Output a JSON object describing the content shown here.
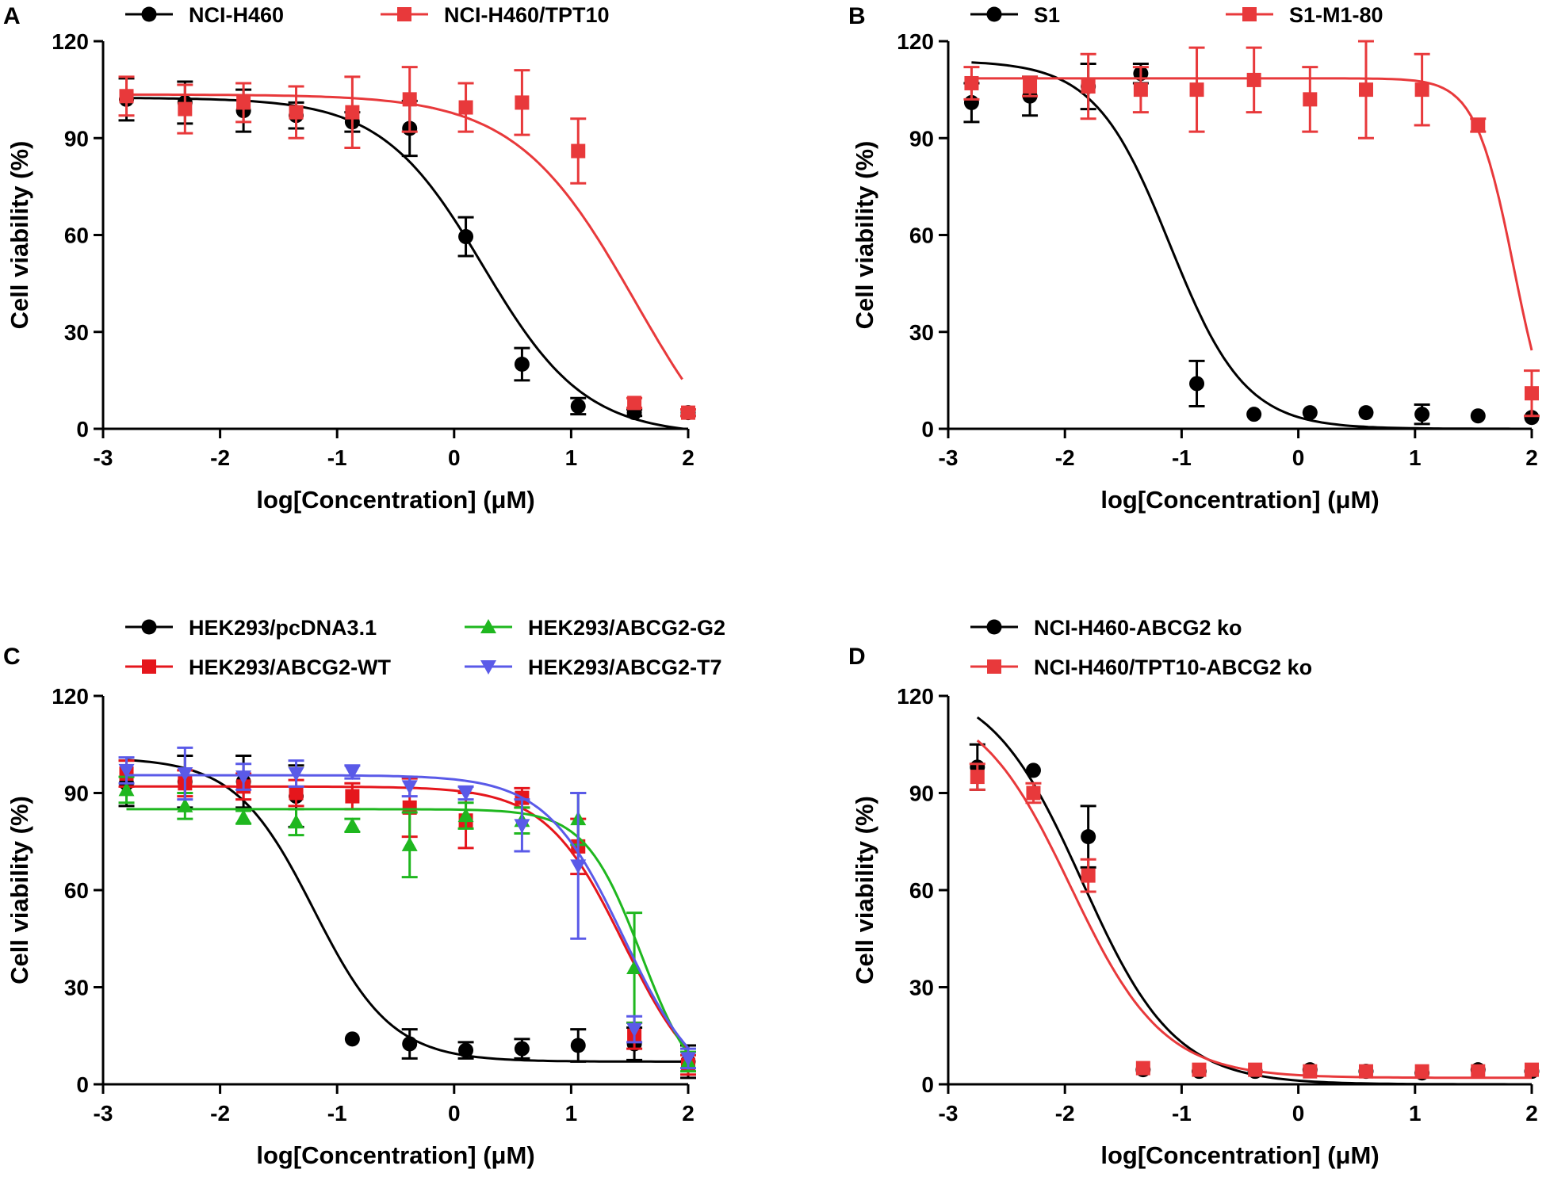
{
  "colors": {
    "black": "#000000",
    "red": "#E8393B",
    "red_dark": "#E5161C",
    "green": "#1FB71F",
    "blue": "#5A5AE8",
    "axis": "#000000"
  },
  "chart_data": [
    {
      "type": "line",
      "panel": "A",
      "xlabel": "log[Concentration] (μM)",
      "ylabel": "Cell viability (%)",
      "xlim": [
        -3,
        2
      ],
      "ylim": [
        0,
        120
      ],
      "xticks": [
        -3,
        -2,
        -1,
        0,
        1,
        2
      ],
      "xtick_labels": [
        "-3",
        "-2",
        "-1",
        "0",
        "1",
        "2"
      ],
      "yticks": [
        0,
        30,
        60,
        90,
        120
      ],
      "ytick_labels": [
        "0",
        "30",
        "60",
        "90",
        "120"
      ],
      "legend_layout": "top-row",
      "series": [
        {
          "name": "NCI-H460",
          "color": "black",
          "marker": "circle",
          "fit": {
            "top": 102.5,
            "bottom": -2,
            "ec50": 0.25,
            "hill": 1.0,
            "from": -2.8,
            "to": 2
          },
          "points": [
            {
              "x": -2.8,
              "y": 102,
              "err": 6.5
            },
            {
              "x": -2.3,
              "y": 101,
              "err": 6.5
            },
            {
              "x": -1.8,
              "y": 98.5,
              "err": 6.5
            },
            {
              "x": -1.35,
              "y": 97,
              "err": 4
            },
            {
              "x": -0.87,
              "y": 95,
              "err": 3
            },
            {
              "x": -0.38,
              "y": 93,
              "err": 8.5
            },
            {
              "x": 0.1,
              "y": 59.5,
              "err": 6
            },
            {
              "x": 0.58,
              "y": 20,
              "err": 5
            },
            {
              "x": 1.06,
              "y": 7,
              "err": 2.5
            },
            {
              "x": 1.54,
              "y": 5,
              "err": 1
            },
            {
              "x": 2.0,
              "y": 5,
              "err": 1
            }
          ]
        },
        {
          "name": "NCI-H460/TPT10",
          "color": "red",
          "marker": "square",
          "fit": {
            "top": 103.5,
            "bottom": -25,
            "ec50": 1.55,
            "hill": 0.85,
            "from": -2.8,
            "to": 1.95
          },
          "points": [
            {
              "x": -2.8,
              "y": 103,
              "err": 6
            },
            {
              "x": -2.3,
              "y": 99,
              "err": 7.5
            },
            {
              "x": -1.8,
              "y": 101,
              "err": 6
            },
            {
              "x": -1.35,
              "y": 98,
              "err": 8
            },
            {
              "x": -0.87,
              "y": 98,
              "err": 11
            },
            {
              "x": -0.38,
              "y": 102,
              "err": 10
            },
            {
              "x": 0.1,
              "y": 99.5,
              "err": 7.5
            },
            {
              "x": 0.58,
              "y": 101,
              "err": 10
            },
            {
              "x": 1.06,
              "y": 86,
              "err": 10
            },
            {
              "x": 1.54,
              "y": 8,
              "err": 1.5
            },
            {
              "x": 2.0,
              "y": 5,
              "err": 1
            }
          ]
        }
      ],
      "legend": [
        "NCI-H460",
        "NCI-H460/TPT10"
      ]
    },
    {
      "type": "line",
      "panel": "B",
      "xlabel": "log[Concentration] (μM)",
      "ylabel": "Cell viability (%)",
      "xlim": [
        -3,
        2
      ],
      "ylim": [
        0,
        120
      ],
      "xticks": [
        -3,
        -2,
        -1,
        0,
        1,
        2
      ],
      "xtick_labels": [
        "-3",
        "-2",
        "-1",
        "0",
        "1",
        "2"
      ],
      "yticks": [
        0,
        30,
        60,
        90,
        120
      ],
      "ytick_labels": [
        "0",
        "30",
        "60",
        "90",
        "120"
      ],
      "legend_layout": "top-row",
      "series": [
        {
          "name": "S1",
          "color": "black",
          "marker": "circle",
          "fit": {
            "top": 114,
            "bottom": 0,
            "ec50": -1.1,
            "hill": 1.35,
            "from": -2.8,
            "to": 2
          },
          "points": [
            {
              "x": -2.8,
              "y": 101,
              "err": 6
            },
            {
              "x": -2.3,
              "y": 103,
              "err": 6
            },
            {
              "x": -1.8,
              "y": 106,
              "err": 7
            },
            {
              "x": -1.35,
              "y": 110,
              "err": 3
            },
            {
              "x": -0.87,
              "y": 14,
              "err": 7
            },
            {
              "x": -0.38,
              "y": 4.5,
              "err": 0
            },
            {
              "x": 0.1,
              "y": 5,
              "err": 0
            },
            {
              "x": 0.58,
              "y": 5,
              "err": 0
            },
            {
              "x": 1.06,
              "y": 4.5,
              "err": 3
            },
            {
              "x": 1.54,
              "y": 4,
              "err": 0
            },
            {
              "x": 2.0,
              "y": 3.5,
              "err": 0
            }
          ]
        },
        {
          "name": "S1-M1-80",
          "color": "red",
          "marker": "square",
          "fit": {
            "top": 108.5,
            "bottom": -10,
            "ec50": 1.85,
            "hill": 2.6,
            "from": -2.8,
            "to": 2.0
          },
          "points": [
            {
              "x": -2.8,
              "y": 107,
              "err": 5
            },
            {
              "x": -2.3,
              "y": 106,
              "err": 3
            },
            {
              "x": -1.8,
              "y": 106,
              "err": 10
            },
            {
              "x": -1.35,
              "y": 105,
              "err": 7
            },
            {
              "x": -0.87,
              "y": 105,
              "err": 13
            },
            {
              "x": -0.38,
              "y": 108,
              "err": 10
            },
            {
              "x": 0.1,
              "y": 102,
              "err": 10
            },
            {
              "x": 0.58,
              "y": 105,
              "err": 15
            },
            {
              "x": 1.06,
              "y": 105,
              "err": 11
            },
            {
              "x": 1.54,
              "y": 94,
              "err": 2
            },
            {
              "x": 2.0,
              "y": 11,
              "err": 7
            }
          ]
        }
      ],
      "legend": [
        "S1",
        "S1-M1-80"
      ]
    },
    {
      "type": "line",
      "panel": "C",
      "xlabel": "log[Concentration] (μM)",
      "ylabel": "Cell viability (%)",
      "xlim": [
        -3,
        2
      ],
      "ylim": [
        0,
        120
      ],
      "xticks": [
        -3,
        -2,
        -1,
        0,
        1,
        2
      ],
      "xtick_labels": [
        "-3",
        "-2",
        "-1",
        "0",
        "1",
        "2"
      ],
      "yticks": [
        0,
        30,
        60,
        90,
        120
      ],
      "ytick_labels": [
        "0",
        "30",
        "60",
        "90",
        "120"
      ],
      "legend_layout": "two-by-two",
      "series": [
        {
          "name": "HEK293/pcDNA3.1",
          "color": "black",
          "marker": "circle",
          "fit": {
            "top": 101,
            "bottom": 7,
            "ec50": -1.2,
            "hill": 1.3,
            "from": -2.8,
            "to": 2
          },
          "points": [
            {
              "x": -2.8,
              "y": 93,
              "err": 7
            },
            {
              "x": -2.3,
              "y": 93.5,
              "err": 8
            },
            {
              "x": -1.8,
              "y": 93.5,
              "err": 8
            },
            {
              "x": -1.35,
              "y": 89,
              "err": 9.5
            },
            {
              "x": -0.87,
              "y": 14,
              "err": 0
            },
            {
              "x": -0.38,
              "y": 12.5,
              "err": 4.5
            },
            {
              "x": 0.1,
              "y": 10.5,
              "err": 2.5
            },
            {
              "x": 0.58,
              "y": 11,
              "err": 3
            },
            {
              "x": 1.06,
              "y": 12,
              "err": 5
            },
            {
              "x": 1.54,
              "y": 12.5,
              "err": 5
            },
            {
              "x": 2.0,
              "y": 7,
              "err": 5
            }
          ]
        },
        {
          "name": "HEK293/ABCG2-WT",
          "color": "red_dark",
          "marker": "square",
          "fit": {
            "top": 92,
            "bottom": -5,
            "ec50": 1.45,
            "hill": 1.3,
            "from": -2.8,
            "to": 2
          },
          "points": [
            {
              "x": -2.8,
              "y": 96,
              "err": 4
            },
            {
              "x": -2.3,
              "y": 93,
              "err": 4
            },
            {
              "x": -1.8,
              "y": 92,
              "err": 4
            },
            {
              "x": -1.35,
              "y": 90,
              "err": 4
            },
            {
              "x": -0.87,
              "y": 89,
              "err": 4
            },
            {
              "x": -0.38,
              "y": 85.5,
              "err": 9
            },
            {
              "x": 0.1,
              "y": 81.5,
              "err": 8.5
            },
            {
              "x": 0.58,
              "y": 88.5,
              "err": 3
            },
            {
              "x": 1.06,
              "y": 73.5,
              "err": 8.5
            },
            {
              "x": 1.54,
              "y": 15,
              "err": 4
            },
            {
              "x": 2.0,
              "y": 6,
              "err": 3
            }
          ]
        },
        {
          "name": "HEK293/ABCG2-G2",
          "color": "green",
          "marker": "triangle-up",
          "fit": {
            "top": 85,
            "bottom": -5,
            "ec50": 1.6,
            "hill": 1.8,
            "from": -2.8,
            "to": 2
          },
          "points": [
            {
              "x": -2.8,
              "y": 91,
              "err": 4
            },
            {
              "x": -2.3,
              "y": 86,
              "err": 4
            },
            {
              "x": -1.8,
              "y": 82.5,
              "err": 2
            },
            {
              "x": -1.35,
              "y": 81,
              "err": 4
            },
            {
              "x": -0.87,
              "y": 80,
              "err": 2
            },
            {
              "x": -0.38,
              "y": 74,
              "err": 10
            },
            {
              "x": 0.1,
              "y": 83,
              "err": 4
            },
            {
              "x": 0.58,
              "y": 81.5,
              "err": 4
            },
            {
              "x": 1.06,
              "y": 82,
              "err": 8
            },
            {
              "x": 1.54,
              "y": 36,
              "err": 17
            },
            {
              "x": 2.0,
              "y": 7,
              "err": 3
            }
          ]
        },
        {
          "name": "HEK293/ABCG2-T7",
          "color": "blue",
          "marker": "triangle-down",
          "fit": {
            "top": 95.5,
            "bottom": -5,
            "ec50": 1.45,
            "hill": 1.3,
            "from": -2.8,
            "to": 2
          },
          "points": [
            {
              "x": -2.8,
              "y": 97,
              "err": 4
            },
            {
              "x": -2.3,
              "y": 96,
              "err": 8
            },
            {
              "x": -1.8,
              "y": 95,
              "err": 4
            },
            {
              "x": -1.35,
              "y": 96,
              "err": 4
            },
            {
              "x": -0.87,
              "y": 96.5,
              "err": 2
            },
            {
              "x": -0.38,
              "y": 92,
              "err": 3
            },
            {
              "x": 0.1,
              "y": 90,
              "err": 2
            },
            {
              "x": 0.58,
              "y": 80,
              "err": 8
            },
            {
              "x": 1.06,
              "y": 67.5,
              "err": 22.5
            },
            {
              "x": 1.54,
              "y": 17,
              "err": 4
            },
            {
              "x": 2.0,
              "y": 8,
              "err": 3
            }
          ]
        }
      ],
      "legend": [
        "HEK293/pcDNA3.1",
        "HEK293/ABCG2-G2",
        "HEK293/ABCG2-WT",
        "HEK293/ABCG2-T7"
      ]
    },
    {
      "type": "line",
      "panel": "D",
      "xlabel": "log[Concentration] (μM)",
      "ylabel": "Cell viability (%)",
      "xlim": [
        -3,
        2
      ],
      "ylim": [
        0,
        120
      ],
      "xticks": [
        -3,
        -2,
        -1,
        0,
        1,
        2
      ],
      "xtick_labels": [
        "-3",
        "-2",
        "-1",
        "0",
        "1",
        "2"
      ],
      "yticks": [
        0,
        30,
        60,
        90,
        120
      ],
      "ytick_labels": [
        "0",
        "30",
        "60",
        "90",
        "120"
      ],
      "legend_layout": "column",
      "series": [
        {
          "name": "NCI-H460-ABCG2 ko",
          "color": "black",
          "marker": "circle",
          "fit": {
            "top": 125,
            "bottom": 0,
            "ec50": -1.85,
            "hill": 1.1,
            "from": -2.75,
            "to": 2
          },
          "points": [
            {
              "x": -2.75,
              "y": 98,
              "err": 7
            },
            {
              "x": -2.27,
              "y": 97,
              "err": 0
            },
            {
              "x": -1.8,
              "y": 76.5,
              "err": 9.5
            },
            {
              "x": -1.33,
              "y": 4.5,
              "err": 0
            },
            {
              "x": -0.85,
              "y": 4,
              "err": 0
            },
            {
              "x": -0.37,
              "y": 4,
              "err": 0
            },
            {
              "x": 0.1,
              "y": 4.5,
              "err": 0
            },
            {
              "x": 0.58,
              "y": 4,
              "err": 0
            },
            {
              "x": 1.06,
              "y": 3.5,
              "err": 0
            },
            {
              "x": 1.54,
              "y": 4.5,
              "err": 0
            },
            {
              "x": 2.0,
              "y": 4,
              "err": 0
            }
          ]
        },
        {
          "name": "NCI-H460/TPT10-ABCG2 ko",
          "color": "red",
          "marker": "square",
          "fit": {
            "top": 120,
            "bottom": 2,
            "ec50": -1.95,
            "hill": 1.1,
            "from": -2.75,
            "to": 2
          },
          "points": [
            {
              "x": -2.75,
              "y": 95,
              "err": 4
            },
            {
              "x": -2.27,
              "y": 90,
              "err": 3
            },
            {
              "x": -1.8,
              "y": 64.5,
              "err": 5
            },
            {
              "x": -1.33,
              "y": 5,
              "err": 0
            },
            {
              "x": -0.85,
              "y": 4.5,
              "err": 0
            },
            {
              "x": -0.37,
              "y": 4.5,
              "err": 0
            },
            {
              "x": 0.1,
              "y": 4,
              "err": 0
            },
            {
              "x": 0.58,
              "y": 4,
              "err": 0
            },
            {
              "x": 1.06,
              "y": 4,
              "err": 0
            },
            {
              "x": 1.54,
              "y": 4,
              "err": 0
            },
            {
              "x": 2.0,
              "y": 4.5,
              "err": 0
            }
          ]
        }
      ],
      "legend": [
        "NCI-H460-ABCG2 ko",
        "NCI-H460/TPT10-ABCG2 ko"
      ]
    }
  ]
}
